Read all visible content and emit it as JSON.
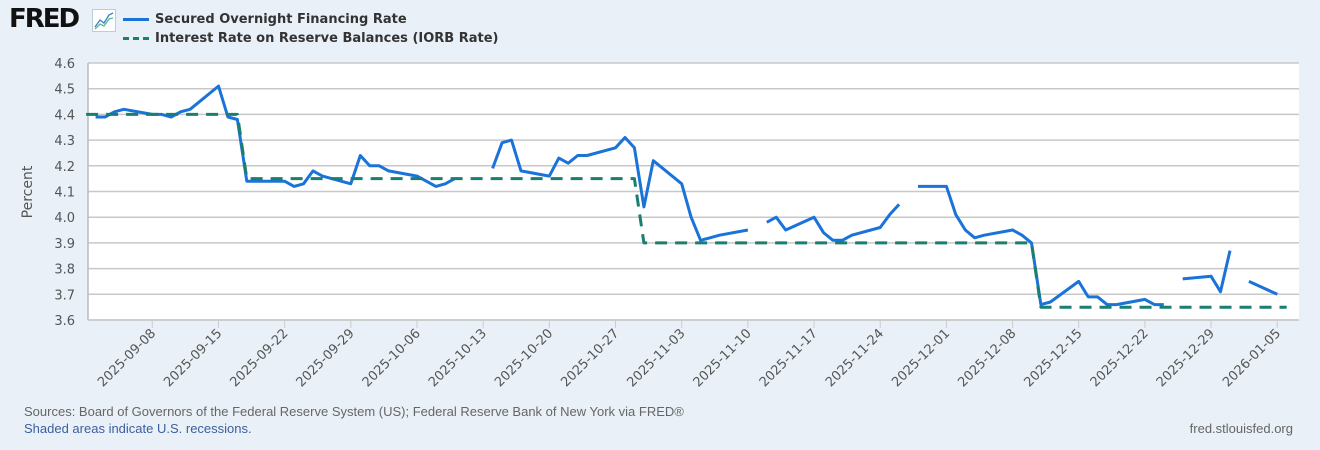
{
  "logo": {
    "text": "FRED",
    "icon": "line-chart-icon"
  },
  "chart_data": {
    "type": "line",
    "title": "",
    "ylabel": "Percent",
    "xlabel": "",
    "ylim": [
      3.6,
      4.6
    ],
    "yticks": [
      "4.6",
      "4.5",
      "4.4",
      "4.3",
      "4.2",
      "4.1",
      "4.0",
      "3.9",
      "3.8",
      "3.7",
      "3.6"
    ],
    "xlim": [
      "2025-09-01",
      "2026-01-07"
    ],
    "xticks": [
      "2025-09-08",
      "2025-09-15",
      "2025-09-22",
      "2025-09-29",
      "2025-10-06",
      "2025-10-13",
      "2025-10-20",
      "2025-10-27",
      "2025-11-03",
      "2025-11-10",
      "2025-11-17",
      "2025-11-24",
      "2025-12-01",
      "2025-12-08",
      "2025-12-15",
      "2025-12-22",
      "2025-12-29",
      "2026-01-05"
    ],
    "grid": true,
    "legend": "top-left",
    "series": [
      {
        "name": "Secured Overnight Financing Rate",
        "color": "#1a73d9",
        "style": "solid",
        "points": [
          [
            "2025-09-02",
            4.39
          ],
          [
            "2025-09-03",
            4.39
          ],
          [
            "2025-09-04",
            4.41
          ],
          [
            "2025-09-05",
            4.42
          ],
          [
            "2025-09-08",
            4.4
          ],
          [
            "2025-09-09",
            4.4
          ],
          [
            "2025-09-10",
            4.39
          ],
          [
            "2025-09-11",
            4.41
          ],
          [
            "2025-09-12",
            4.42
          ],
          [
            "2025-09-15",
            4.51
          ],
          [
            "2025-09-16",
            4.39
          ],
          [
            "2025-09-17",
            4.38
          ],
          [
            "2025-09-18",
            4.14
          ],
          [
            "2025-09-19",
            4.14
          ],
          [
            "2025-09-22",
            4.14
          ],
          [
            "2025-09-23",
            4.12
          ],
          [
            "2025-09-24",
            4.13
          ],
          [
            "2025-09-25",
            4.18
          ],
          [
            "2025-09-26",
            4.16
          ],
          [
            "2025-09-29",
            4.13
          ],
          [
            "2025-09-30",
            4.24
          ],
          [
            "2025-10-01",
            4.2
          ],
          [
            "2025-10-02",
            4.2
          ],
          [
            "2025-10-03",
            4.18
          ],
          [
            "2025-10-06",
            4.16
          ],
          [
            "2025-10-07",
            4.14
          ],
          [
            "2025-10-08",
            4.12
          ],
          [
            "2025-10-09",
            4.13
          ],
          [
            "2025-10-10",
            4.15
          ],
          [
            "2025-10-13",
            null
          ],
          [
            "2025-10-14",
            4.19
          ],
          [
            "2025-10-15",
            4.29
          ],
          [
            "2025-10-16",
            4.3
          ],
          [
            "2025-10-17",
            4.18
          ],
          [
            "2025-10-20",
            4.16
          ],
          [
            "2025-10-21",
            4.23
          ],
          [
            "2025-10-22",
            4.21
          ],
          [
            "2025-10-23",
            4.24
          ],
          [
            "2025-10-24",
            4.24
          ],
          [
            "2025-10-27",
            4.27
          ],
          [
            "2025-10-28",
            4.31
          ],
          [
            "2025-10-29",
            4.27
          ],
          [
            "2025-10-30",
            4.04
          ],
          [
            "2025-10-31",
            4.22
          ],
          [
            "2025-11-03",
            4.13
          ],
          [
            "2025-11-04",
            4.0
          ],
          [
            "2025-11-05",
            3.91
          ],
          [
            "2025-11-06",
            3.92
          ],
          [
            "2025-11-07",
            3.93
          ],
          [
            "2025-11-10",
            3.95
          ],
          [
            "2025-11-11",
            null
          ],
          [
            "2025-11-12",
            3.98
          ],
          [
            "2025-11-13",
            4.0
          ],
          [
            "2025-11-14",
            3.95
          ],
          [
            "2025-11-17",
            4.0
          ],
          [
            "2025-11-18",
            3.94
          ],
          [
            "2025-11-19",
            3.91
          ],
          [
            "2025-11-20",
            3.91
          ],
          [
            "2025-11-21",
            3.93
          ],
          [
            "2025-11-24",
            3.96
          ],
          [
            "2025-11-25",
            4.01
          ],
          [
            "2025-11-26",
            4.05
          ],
          [
            "2025-11-27",
            null
          ],
          [
            "2025-11-28",
            4.12
          ],
          [
            "2025-12-01",
            4.12
          ],
          [
            "2025-12-02",
            4.01
          ],
          [
            "2025-12-03",
            3.95
          ],
          [
            "2025-12-04",
            3.92
          ],
          [
            "2025-12-05",
            3.93
          ],
          [
            "2025-12-08",
            3.95
          ],
          [
            "2025-12-09",
            3.93
          ],
          [
            "2025-12-10",
            3.9
          ],
          [
            "2025-12-11",
            3.66
          ],
          [
            "2025-12-12",
            3.67
          ],
          [
            "2025-12-15",
            3.75
          ],
          [
            "2025-12-16",
            3.69
          ],
          [
            "2025-12-17",
            3.69
          ],
          [
            "2025-12-18",
            3.66
          ],
          [
            "2025-12-19",
            3.66
          ],
          [
            "2025-12-22",
            3.68
          ],
          [
            "2025-12-23",
            3.66
          ],
          [
            "2025-12-24",
            3.66
          ],
          [
            "2025-12-25",
            null
          ],
          [
            "2025-12-26",
            3.76
          ],
          [
            "2025-12-29",
            3.77
          ],
          [
            "2025-12-30",
            3.71
          ],
          [
            "2025-12-31",
            3.87
          ],
          [
            "2026-01-01",
            null
          ],
          [
            "2026-01-02",
            3.75
          ],
          [
            "2026-01-05",
            3.7
          ]
        ]
      },
      {
        "name": "Interest Rate on Reserve Balances (IORB Rate)",
        "color": "#1a7f6e",
        "style": "dashed",
        "points": [
          [
            "2025-09-01",
            4.4
          ],
          [
            "2025-09-17",
            4.4
          ],
          [
            "2025-09-18",
            4.15
          ],
          [
            "2025-10-29",
            4.15
          ],
          [
            "2025-10-30",
            3.9
          ],
          [
            "2025-12-10",
            3.9
          ],
          [
            "2025-12-11",
            3.65
          ],
          [
            "2026-01-06",
            3.65
          ]
        ]
      }
    ]
  },
  "footer": {
    "sources": "Sources: Board of Governors of the Federal Reserve System (US); Federal Reserve Bank of New York via FRED®",
    "recessions": "Shaded areas indicate U.S. recessions.",
    "site": "fred.stlouisfed.org"
  }
}
